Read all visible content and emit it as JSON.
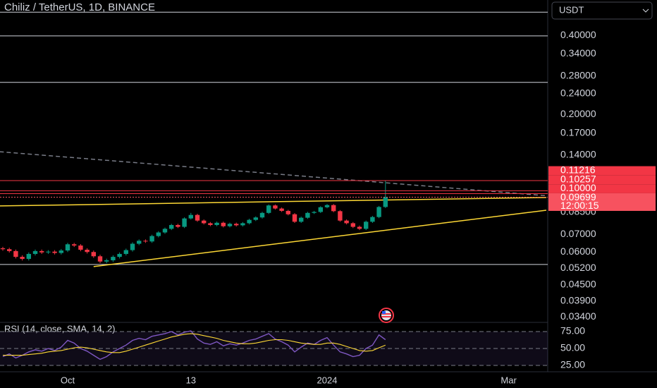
{
  "chart_data": [
    {
      "type": "candlestick",
      "title": "Chiliz / TetherUS, 1D, BINANCE",
      "currency_button": "USDT",
      "log_scale": true,
      "up_color": "#089981",
      "down_color": "#f23645",
      "categories": [
        null,
        null,
        null,
        null,
        null,
        null,
        null,
        null,
        null,
        null,
        "Oct",
        null,
        null,
        null,
        null,
        null,
        null,
        null,
        null,
        null,
        null,
        null,
        null,
        null,
        null,
        null,
        null,
        null,
        null,
        "13",
        null,
        null,
        null,
        null,
        null,
        null,
        null,
        null,
        null,
        null,
        null,
        null,
        null,
        null,
        null,
        null,
        null,
        null,
        null,
        null,
        "2024",
        null,
        null,
        null,
        null,
        null,
        null,
        null,
        null,
        null,
        null,
        null,
        null,
        null,
        null,
        null,
        null,
        null,
        null,
        null,
        null,
        null,
        null,
        null,
        null,
        null,
        null,
        null,
        "Mar",
        null,
        null,
        null,
        null,
        null
      ],
      "open": [
        0.062,
        0.0615,
        0.0605,
        0.0575,
        0.0565,
        0.059,
        0.0605,
        0.0598,
        0.0602,
        0.0595,
        0.0608,
        0.0642,
        0.0635,
        0.0612,
        0.06,
        0.0578,
        0.0552,
        0.0558,
        0.0575,
        0.059,
        0.061,
        0.0645,
        0.0662,
        0.0658,
        0.069,
        0.0712,
        0.0735,
        0.076,
        0.0748,
        0.0805,
        0.083,
        0.079,
        0.0772,
        0.076,
        0.0775,
        0.0752,
        0.0768,
        0.0758,
        0.0772,
        0.0795,
        0.0812,
        0.0845,
        0.0902,
        0.0878,
        0.086,
        0.0835,
        0.0782,
        0.081,
        0.0845,
        0.0852,
        0.0888,
        0.0905,
        0.0858,
        0.079,
        0.0772,
        0.0748,
        0.0735,
        0.0782,
        0.0815,
        0.089,
        null,
        null,
        null,
        null,
        null,
        null,
        null,
        null,
        null,
        null,
        null,
        null,
        null,
        null,
        null,
        null,
        null,
        null,
        null,
        null,
        null,
        null,
        null,
        null
      ],
      "high": [
        0.0628,
        0.0623,
        0.0613,
        0.0583,
        0.0598,
        0.0613,
        0.0613,
        0.061,
        0.061,
        0.0616,
        0.065,
        0.065,
        0.0643,
        0.062,
        0.0608,
        0.0586,
        0.0566,
        0.0583,
        0.0598,
        0.0618,
        0.0653,
        0.067,
        0.067,
        0.0698,
        0.072,
        0.0743,
        0.0768,
        0.0768,
        0.0813,
        0.0845,
        0.0838,
        0.0798,
        0.078,
        0.0783,
        0.0783,
        0.0776,
        0.0776,
        0.078,
        0.0803,
        0.082,
        0.0853,
        0.091,
        0.091,
        0.0886,
        0.0868,
        0.0843,
        0.0818,
        0.0853,
        0.086,
        0.0896,
        0.0913,
        0.0913,
        0.0866,
        0.0798,
        0.078,
        0.0756,
        0.079,
        0.0823,
        0.0898,
        0.1122,
        null,
        null,
        null,
        null,
        null,
        null,
        null,
        null,
        null,
        null,
        null,
        null,
        null,
        null,
        null,
        null,
        null,
        null,
        null,
        null,
        null,
        null,
        null,
        null
      ],
      "low": [
        0.0607,
        0.0597,
        0.0567,
        0.0557,
        0.0557,
        0.0582,
        0.059,
        0.059,
        0.0587,
        0.0587,
        0.06,
        0.0627,
        0.0604,
        0.0592,
        0.057,
        0.0544,
        0.0544,
        0.055,
        0.0567,
        0.0582,
        0.0602,
        0.0637,
        0.065,
        0.065,
        0.0682,
        0.0704,
        0.0727,
        0.074,
        0.074,
        0.0797,
        0.0782,
        0.0764,
        0.0752,
        0.0752,
        0.0744,
        0.0744,
        0.075,
        0.075,
        0.0764,
        0.0787,
        0.0804,
        0.0837,
        0.087,
        0.0852,
        0.0827,
        0.0774,
        0.0774,
        0.0802,
        0.0837,
        0.0844,
        0.088,
        0.085,
        0.0782,
        0.0764,
        0.074,
        0.0727,
        0.0727,
        0.0774,
        0.0807,
        0.0882,
        null,
        null,
        null,
        null,
        null,
        null,
        null,
        null,
        null,
        null,
        null,
        null,
        null,
        null,
        null,
        null,
        null,
        null,
        null,
        null,
        null,
        null,
        null,
        null
      ],
      "close": [
        0.0615,
        0.0605,
        0.0575,
        0.0565,
        0.059,
        0.0605,
        0.0598,
        0.0602,
        0.0595,
        0.0608,
        0.0642,
        0.0635,
        0.0612,
        0.06,
        0.0578,
        0.0552,
        0.0558,
        0.0575,
        0.059,
        0.061,
        0.0645,
        0.0662,
        0.0658,
        0.069,
        0.0712,
        0.0735,
        0.076,
        0.0748,
        0.0805,
        0.083,
        0.079,
        0.0772,
        0.076,
        0.0775,
        0.0752,
        0.0768,
        0.0758,
        0.0772,
        0.0795,
        0.0812,
        0.0845,
        0.0902,
        0.0878,
        0.086,
        0.0835,
        0.0782,
        0.081,
        0.0845,
        0.0852,
        0.0888,
        0.0905,
        0.0858,
        0.079,
        0.0772,
        0.0748,
        0.0735,
        0.0782,
        0.0815,
        0.089,
        0.097,
        null,
        null,
        null,
        null,
        null,
        null,
        null,
        null,
        null,
        null,
        null,
        null,
        null,
        null,
        null,
        null,
        null,
        null,
        null,
        null,
        null,
        null,
        null,
        null
      ],
      "ylim": [
        0.0328,
        0.545
      ],
      "yticks": [
        {
          "value": 0.4,
          "label": "0.40000"
        },
        {
          "value": 0.34,
          "label": "0.34000"
        },
        {
          "value": 0.28,
          "label": "0.28000"
        },
        {
          "value": 0.24,
          "label": "0.24000"
        },
        {
          "value": 0.2,
          "label": "0.20000"
        },
        {
          "value": 0.17,
          "label": "0.17000"
        },
        {
          "value": 0.14,
          "label": "0.14000"
        },
        {
          "value": 0.085,
          "label": "0.08500"
        },
        {
          "value": 0.07,
          "label": "0.07000"
        },
        {
          "value": 0.06,
          "label": "0.06000"
        },
        {
          "value": 0.052,
          "label": "0.05200"
        },
        {
          "value": 0.045,
          "label": "0.04500"
        },
        {
          "value": 0.039,
          "label": "0.03900"
        },
        {
          "value": 0.034,
          "label": "0.03400"
        }
      ],
      "hlines": [
        {
          "value": 0.49,
          "color": "#d1d4dc"
        },
        {
          "value": 0.398,
          "color": "#d1d4dc"
        },
        {
          "value": 0.265,
          "color": "#d1d4dc"
        },
        {
          "value": 0.0538,
          "color": "#d1d4dc"
        }
      ],
      "price_tags": [
        {
          "value": 0.11216,
          "label": "0.11216",
          "color": "#f23645"
        },
        {
          "value": 0.10257,
          "label": "0.10257",
          "color": "#f23645"
        },
        {
          "value": 0.1,
          "label": "0.10000",
          "color": "#f23645"
        },
        {
          "value": 0.09699,
          "label": "0.09699",
          "color": "#f7525f"
        }
      ],
      "countdown": "12:00:15",
      "trendlines": [
        {
          "from": [
            14,
            0.0528
          ],
          "to": [
            83.8,
            0.0865
          ],
          "color": "#fdd835",
          "dash": false
        },
        {
          "from": [
            -0.5,
            0.0898
          ],
          "to": [
            83.8,
            0.0967
          ],
          "color": "#fdd835",
          "dash": false
        },
        {
          "from": [
            -0.5,
            0.1444
          ],
          "to": [
            83.8,
            0.0982
          ],
          "color": "#787b86",
          "dash": true
        }
      ]
    },
    {
      "type": "line",
      "title": "RSI (14, close, SMA, 14, 2)",
      "band_color": "#7e57c2",
      "series": [
        {
          "name": "RSI",
          "color": "#7e57c2",
          "values": [
            38,
            42,
            36,
            40,
            45,
            48,
            46,
            50,
            47,
            52,
            62,
            58,
            50,
            46,
            40,
            34,
            38,
            45,
            50,
            55,
            62,
            65,
            63,
            68,
            70,
            72,
            75,
            70,
            74,
            76,
            64,
            58,
            56,
            60,
            54,
            57,
            55,
            58,
            62,
            64,
            68,
            72,
            64,
            60,
            55,
            45,
            52,
            58,
            56,
            62,
            66,
            55,
            45,
            42,
            38,
            40,
            50,
            55,
            70,
            63,
            null,
            null,
            null,
            null,
            null,
            null,
            null,
            null,
            null,
            null,
            null,
            null,
            null,
            null,
            null,
            null,
            null,
            null,
            null,
            null,
            null,
            null,
            null,
            null
          ]
        },
        {
          "name": "SMA",
          "color": "#fdd835",
          "values": [
            40,
            40,
            40,
            40,
            41,
            42,
            43,
            45,
            46,
            47,
            49,
            51,
            52,
            51,
            49,
            47,
            45,
            44,
            44,
            46,
            49,
            52,
            55,
            58,
            61,
            64,
            67,
            69,
            71,
            72,
            71,
            69,
            67,
            65,
            62,
            60,
            58,
            57,
            57,
            58,
            60,
            62,
            63,
            63,
            62,
            60,
            58,
            57,
            56,
            56,
            58,
            58,
            56,
            53,
            50,
            47,
            46,
            47,
            51,
            55,
            null,
            null,
            null,
            null,
            null,
            null,
            null,
            null,
            null,
            null,
            null,
            null,
            null,
            null,
            null,
            null,
            null,
            null,
            null,
            null,
            null,
            null,
            null,
            null
          ]
        }
      ],
      "ylim": [
        16,
        84
      ],
      "yticks": [
        {
          "value": 75,
          "label": "75.00"
        },
        {
          "value": 50,
          "label": "50.00"
        },
        {
          "value": 25,
          "label": "25.00"
        }
      ]
    }
  ]
}
